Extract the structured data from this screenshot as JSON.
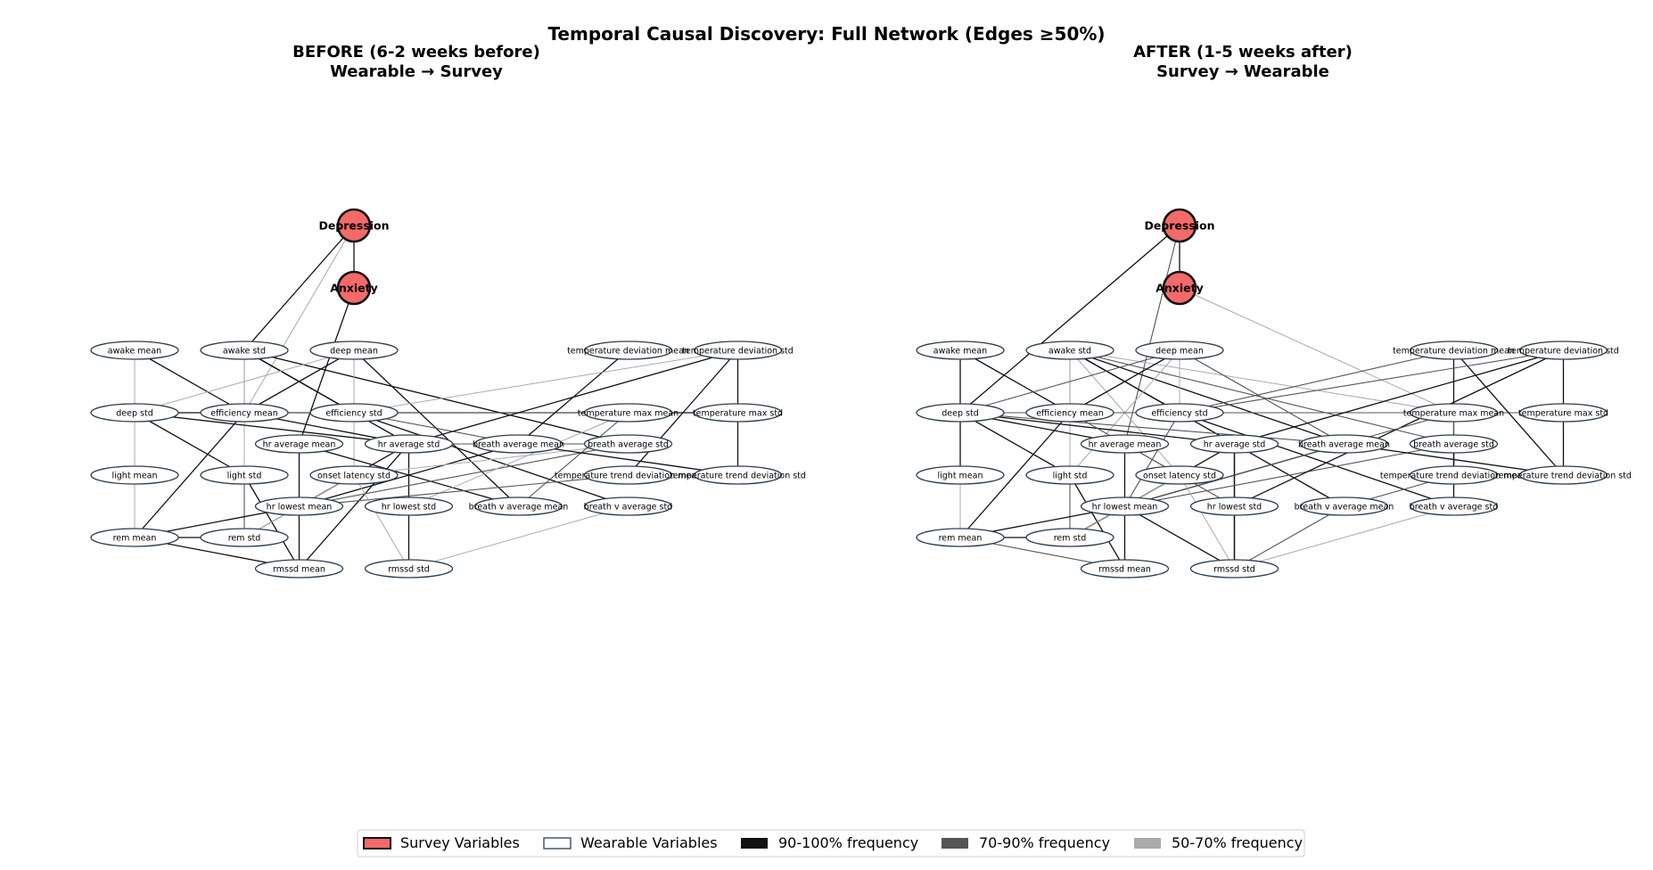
{
  "title": "Temporal Causal Discovery: Full Network (Edges ≥50%)",
  "colors": {
    "survey_fill": "#f46a6a",
    "survey_stroke": "#111111",
    "wearable_fill": "#ffffff",
    "wearable_stroke": "#2c3e50",
    "freq_high": "#111111",
    "freq_mid": "#555555",
    "freq_low": "#aaaaaa"
  },
  "legend": {
    "survey": "Survey Variables",
    "wearable": "Wearable Variables",
    "high": "90-100% frequency",
    "mid": "70-90% frequency",
    "low": "50-70% frequency"
  },
  "panels": [
    {
      "title_line1": "BEFORE (6-2 weeks before)",
      "title_line2": "Wearable → Survey",
      "edges": [
        [
          "depression",
          "anxiety",
          "high"
        ],
        [
          "awake_std",
          "depression",
          "high"
        ],
        [
          "efficiency_mean",
          "depression",
          "low"
        ],
        [
          "hr_average_mean",
          "anxiety",
          "high"
        ],
        [
          "awake_mean",
          "efficiency_mean",
          "high"
        ],
        [
          "awake_mean",
          "deep_std",
          "low"
        ],
        [
          "awake_std",
          "efficiency_mean",
          "mid"
        ],
        [
          "awake_std",
          "efficiency_std",
          "high"
        ],
        [
          "awake_std",
          "hr_average_std",
          "high"
        ],
        [
          "awake_std",
          "breath_average_std",
          "high"
        ],
        [
          "awake_std",
          "light_std",
          "low"
        ],
        [
          "deep_mean",
          "efficiency_mean",
          "high"
        ],
        [
          "deep_mean",
          "efficiency_std",
          "low"
        ],
        [
          "deep_mean",
          "breath_v_average_mean",
          "high"
        ],
        [
          "deep_mean",
          "deep_std",
          "low"
        ],
        [
          "deep_mean",
          "onset_latency_std",
          "low"
        ],
        [
          "deep_std",
          "light_mean",
          "low"
        ],
        [
          "deep_std",
          "light_std",
          "high"
        ],
        [
          "deep_std",
          "hr_average_std",
          "high"
        ],
        [
          "deep_std",
          "efficiency_std",
          "mid"
        ],
        [
          "deep_std",
          "temperature_max_std",
          "high"
        ],
        [
          "efficiency_mean",
          "rem_mean",
          "high"
        ],
        [
          "efficiency_mean",
          "temperature_max_mean",
          "mid"
        ],
        [
          "efficiency_std",
          "breath_v_average_std",
          "high"
        ],
        [
          "efficiency_std",
          "breath_average_mean",
          "mid"
        ],
        [
          "hr_average_mean",
          "hr_lowest_mean",
          "high"
        ],
        [
          "hr_average_mean",
          "breath_v_average_mean",
          "high"
        ],
        [
          "hr_average_std",
          "hr_lowest_std",
          "high"
        ],
        [
          "hr_average_std",
          "hr_lowest_mean",
          "high"
        ],
        [
          "hr_average_std",
          "rmssd_mean",
          "high"
        ],
        [
          "hr_average_std",
          "breath_average_std",
          "mid"
        ],
        [
          "breath_average_mean",
          "hr_lowest_mean",
          "high"
        ],
        [
          "breath_average_std",
          "hr_lowest_mean",
          "mid"
        ],
        [
          "breath_average_std",
          "onset_latency_std",
          "low"
        ],
        [
          "temperature_deviation_mean",
          "breath_average_mean",
          "high"
        ],
        [
          "temperature_deviation_std",
          "hr_average_std",
          "high"
        ],
        [
          "temperature_deviation_std",
          "temperature_max_std",
          "high"
        ],
        [
          "temperature_deviation_std",
          "temperature_trend_deviation_mean",
          "high"
        ],
        [
          "temperature_deviation_std",
          "efficiency_std",
          "low"
        ],
        [
          "temperature_max_mean",
          "breath_v_average_mean",
          "mid"
        ],
        [
          "temperature_max_mean",
          "hr_lowest_std",
          "low"
        ],
        [
          "temperature_max_std",
          "temperature_trend_deviation_std",
          "high"
        ],
        [
          "temperature_trend_deviation_std",
          "breath_average_mean",
          "high"
        ],
        [
          "temperature_trend_deviation_mean",
          "hr_lowest_mean",
          "mid"
        ],
        [
          "light_mean",
          "rem_mean",
          "low"
        ],
        [
          "light_std",
          "rmssd_mean",
          "high"
        ],
        [
          "light_std",
          "rem_std",
          "mid"
        ],
        [
          "rem_mean",
          "rem_std",
          "high"
        ],
        [
          "rem_mean",
          "rmssd_mean",
          "high"
        ],
        [
          "rem_mean",
          "hr_lowest_mean",
          "high"
        ],
        [
          "rem_std",
          "hr_lowest_mean",
          "mid"
        ],
        [
          "hr_lowest_mean",
          "rmssd_mean",
          "high"
        ],
        [
          "hr_lowest_std",
          "rmssd_std",
          "high"
        ],
        [
          "onset_latency_std",
          "rmssd_std",
          "low"
        ],
        [
          "breath_v_average_std",
          "rmssd_std",
          "low"
        ],
        [
          "onset_latency_std",
          "rem_std",
          "low"
        ],
        [
          "efficiency_mean",
          "hr_average_std",
          "high"
        ]
      ]
    },
    {
      "title_line1": "AFTER (1-5 weeks after)",
      "title_line2": "Survey → Wearable",
      "edges": [
        [
          "depression",
          "anxiety",
          "high"
        ],
        [
          "depression",
          "deep_std",
          "high"
        ],
        [
          "depression",
          "hr_average_mean",
          "mid"
        ],
        [
          "anxiety",
          "temperature_max_mean",
          "low"
        ],
        [
          "awake_mean",
          "efficiency_mean",
          "high"
        ],
        [
          "awake_mean",
          "deep_std",
          "high"
        ],
        [
          "awake_std",
          "efficiency_mean",
          "mid"
        ],
        [
          "awake_std",
          "efficiency_std",
          "high"
        ],
        [
          "awake_std",
          "hr_average_std",
          "high"
        ],
        [
          "awake_std",
          "breath_average_mean",
          "high"
        ],
        [
          "awake_std",
          "breath_average_std",
          "mid"
        ],
        [
          "awake_std",
          "light_std",
          "low"
        ],
        [
          "awake_std",
          "onset_latency_std",
          "low"
        ],
        [
          "awake_std",
          "temperature_max_mean",
          "low"
        ],
        [
          "deep_mean",
          "efficiency_mean",
          "high"
        ],
        [
          "deep_mean",
          "breath_average_mean",
          "mid"
        ],
        [
          "deep_mean",
          "deep_std",
          "mid"
        ],
        [
          "deep_mean",
          "efficiency_std",
          "low"
        ],
        [
          "deep_mean",
          "light_std",
          "low"
        ],
        [
          "deep_std",
          "light_mean",
          "high"
        ],
        [
          "deep_std",
          "light_std",
          "high"
        ],
        [
          "deep_std",
          "hr_average_mean",
          "high"
        ],
        [
          "deep_std",
          "hr_average_std",
          "high"
        ],
        [
          "deep_std",
          "breath_average_mean",
          "mid"
        ],
        [
          "deep_std",
          "efficiency_std",
          "low"
        ],
        [
          "deep_std",
          "temperature_max_std",
          "mid"
        ],
        [
          "efficiency_mean",
          "rem_mean",
          "high"
        ],
        [
          "efficiency_mean",
          "hr_lowest_std",
          "mid"
        ],
        [
          "efficiency_std",
          "breath_v_average_std",
          "high"
        ],
        [
          "efficiency_std",
          "hr_lowest_mean",
          "mid"
        ],
        [
          "efficiency_std",
          "temperature_deviation_mean",
          "mid"
        ],
        [
          "hr_average_mean",
          "hr_lowest_mean",
          "high"
        ],
        [
          "hr_average_mean",
          "onset_latency_std",
          "mid"
        ],
        [
          "hr_average_std",
          "hr_lowest_std",
          "high"
        ],
        [
          "hr_average_std",
          "hr_lowest_mean",
          "high"
        ],
        [
          "hr_average_std",
          "rmssd_std",
          "high"
        ],
        [
          "hr_average_std",
          "breath_v_average_mean",
          "high"
        ],
        [
          "breath_average_mean",
          "hr_lowest_mean",
          "high"
        ],
        [
          "breath_average_std",
          "hr_lowest_mean",
          "mid"
        ],
        [
          "breath_average_std",
          "breath_v_average_std",
          "high"
        ],
        [
          "temperature_deviation_mean",
          "temperature_max_mean",
          "high"
        ],
        [
          "temperature_deviation_mean",
          "temperature_trend_deviation_std",
          "high"
        ],
        [
          "temperature_deviation_std",
          "hr_average_std",
          "high"
        ],
        [
          "temperature_deviation_std",
          "temperature_max_std",
          "high"
        ],
        [
          "temperature_deviation_std",
          "hr_lowest_std",
          "high"
        ],
        [
          "temperature_deviation_std",
          "efficiency_std",
          "mid"
        ],
        [
          "temperature_max_mean",
          "temperature_trend_deviation_mean",
          "high"
        ],
        [
          "temperature_max_mean",
          "hr_lowest_mean",
          "mid"
        ],
        [
          "temperature_max_mean",
          "breath_average_std",
          "mid"
        ],
        [
          "temperature_max_std",
          "temperature_trend_deviation_std",
          "high"
        ],
        [
          "temperature_trend_deviation_std",
          "breath_average_mean",
          "high"
        ],
        [
          "temperature_trend_deviation_mean",
          "breath_v_average_mean",
          "mid"
        ],
        [
          "light_mean",
          "rem_mean",
          "low"
        ],
        [
          "light_std",
          "rmssd_mean",
          "high"
        ],
        [
          "light_std",
          "rem_std",
          "mid"
        ],
        [
          "rem_mean",
          "rem_std",
          "high"
        ],
        [
          "rem_mean",
          "rmssd_mean",
          "mid"
        ],
        [
          "rem_mean",
          "hr_lowest_mean",
          "high"
        ],
        [
          "rem_std",
          "hr_lowest_mean",
          "high"
        ],
        [
          "hr_lowest_mean",
          "rmssd_mean",
          "high"
        ],
        [
          "hr_lowest_mean",
          "rmssd_std",
          "high"
        ],
        [
          "hr_lowest_std",
          "rmssd_std",
          "high"
        ],
        [
          "onset_latency_std",
          "rmssd_std",
          "low"
        ],
        [
          "breath_v_average_mean",
          "rmssd_std",
          "mid"
        ],
        [
          "breath_v_average_std",
          "rmssd_std",
          "low"
        ],
        [
          "onset_latency_std",
          "rem_std",
          "low"
        ]
      ]
    }
  ],
  "nodes": [
    {
      "id": "depression",
      "label": "Depression",
      "kind": "survey",
      "row": -2,
      "col": 5
    },
    {
      "id": "anxiety",
      "label": "Anxiety",
      "kind": "survey",
      "row": -1,
      "col": 5
    },
    {
      "id": "awake_mean",
      "label": "awake mean",
      "kind": "wearable",
      "row": 0,
      "col": 1
    },
    {
      "id": "awake_std",
      "label": "awake std",
      "kind": "wearable",
      "row": 0,
      "col": 3
    },
    {
      "id": "deep_mean",
      "label": "deep mean",
      "kind": "wearable",
      "row": 0,
      "col": 5
    },
    {
      "id": "temperature_deviation_mean",
      "label": "temperature deviation mean",
      "kind": "wearable",
      "row": 0,
      "col": 10
    },
    {
      "id": "temperature_deviation_std",
      "label": "temperature deviation std",
      "kind": "wearable",
      "row": 0,
      "col": 12
    },
    {
      "id": "deep_std",
      "label": "deep std",
      "kind": "wearable",
      "row": 1,
      "col": 1
    },
    {
      "id": "efficiency_mean",
      "label": "efficiency mean",
      "kind": "wearable",
      "row": 1,
      "col": 3
    },
    {
      "id": "efficiency_std",
      "label": "efficiency std",
      "kind": "wearable",
      "row": 1,
      "col": 5
    },
    {
      "id": "temperature_max_mean",
      "label": "temperature max mean",
      "kind": "wearable",
      "row": 1,
      "col": 10
    },
    {
      "id": "temperature_max_std",
      "label": "temperature max std",
      "kind": "wearable",
      "row": 1,
      "col": 12
    },
    {
      "id": "hr_average_mean",
      "label": "hr average mean",
      "kind": "wearable",
      "row": 1.5,
      "col": 4
    },
    {
      "id": "hr_average_std",
      "label": "hr average std",
      "kind": "wearable",
      "row": 1.5,
      "col": 6
    },
    {
      "id": "breath_average_mean",
      "label": "breath average mean",
      "kind": "wearable",
      "row": 1.5,
      "col": 8
    },
    {
      "id": "breath_average_std",
      "label": "breath average std",
      "kind": "wearable",
      "row": 1.5,
      "col": 10
    },
    {
      "id": "light_mean",
      "label": "light mean",
      "kind": "wearable",
      "row": 2,
      "col": 1
    },
    {
      "id": "light_std",
      "label": "light std",
      "kind": "wearable",
      "row": 2,
      "col": 3
    },
    {
      "id": "onset_latency_std",
      "label": "onset latency std",
      "kind": "wearable",
      "row": 2,
      "col": 5
    },
    {
      "id": "temperature_trend_deviation_mean",
      "label": "temperature trend deviation mean",
      "kind": "wearable",
      "row": 2,
      "col": 10
    },
    {
      "id": "temperature_trend_deviation_std",
      "label": "temperature trend deviation std",
      "kind": "wearable",
      "row": 2,
      "col": 12
    },
    {
      "id": "hr_lowest_mean",
      "label": "hr lowest mean",
      "kind": "wearable",
      "row": 2.5,
      "col": 4
    },
    {
      "id": "hr_lowest_std",
      "label": "hr lowest std",
      "kind": "wearable",
      "row": 2.5,
      "col": 6
    },
    {
      "id": "breath_v_average_mean",
      "label": "breath v average mean",
      "kind": "wearable",
      "row": 2.5,
      "col": 8
    },
    {
      "id": "breath_v_average_std",
      "label": "breath v average std",
      "kind": "wearable",
      "row": 2.5,
      "col": 10
    },
    {
      "id": "rem_mean",
      "label": "rem mean",
      "kind": "wearable",
      "row": 3,
      "col": 1
    },
    {
      "id": "rem_std",
      "label": "rem std",
      "kind": "wearable",
      "row": 3,
      "col": 3
    },
    {
      "id": "rmssd_mean",
      "label": "rmssd mean",
      "kind": "wearable",
      "row": 3.5,
      "col": 4
    },
    {
      "id": "rmssd_std",
      "label": "rmssd std",
      "kind": "wearable",
      "row": 3.5,
      "col": 6
    }
  ]
}
